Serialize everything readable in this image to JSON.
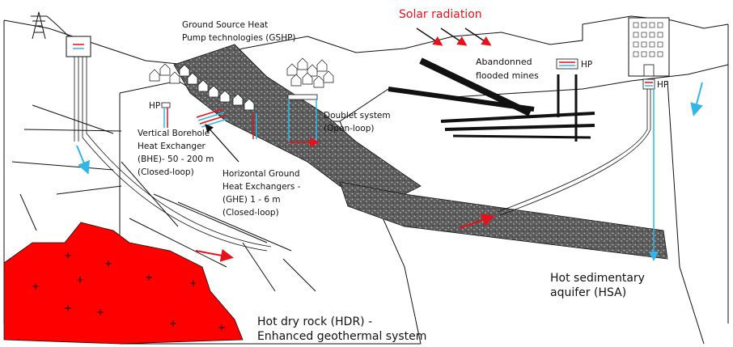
{
  "labels": {
    "gshp_line1": "Ground Source Heat",
    "gshp_line2": "Pump technologies (GSHP)",
    "solar": "Solar radiation",
    "mines_line1": "Abandonned",
    "mines_line2": "flooded mines",
    "hp_mines": "HP",
    "hp_borehole": "HP",
    "hp_building": "HP",
    "bhe_line1": "Vertical Borehole",
    "bhe_line2": "Heat Exchanger",
    "bhe_line3": "(BHE)- 50 - 200 m",
    "bhe_line4": "(Closed-loop)",
    "ghe_line1": "Horizontal Ground",
    "ghe_line2": "Heat Exchangers -",
    "ghe_line3": "(GHE) 1 - 6 m",
    "ghe_line4": "(Closed-loop)",
    "doublet_line1": "Doublet system",
    "doublet_line2": "(Open-loop)",
    "hsa_line1": "Hot sedimentary",
    "hsa_line2": "aquifer (HSA)",
    "hdr_line1": "Hot dry rock (HDR) -",
    "hdr_line2": "Enhanced geothermal system"
  },
  "colors": {
    "hot_rock": "#ff0000",
    "solar_text": "#e8101a",
    "cold_flow": "#33b5e8",
    "hot_flow": "#e8101a",
    "aquifer": "#6e6e6e",
    "outline": "#111111"
  }
}
